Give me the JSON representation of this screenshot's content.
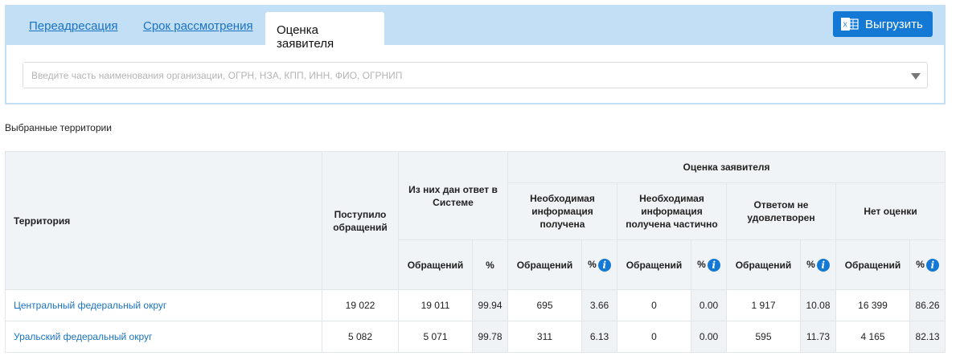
{
  "tabs": [
    {
      "label": "Переадресация",
      "active": false
    },
    {
      "label": "Срок рассмотрения",
      "active": false
    },
    {
      "label": "Оценка заявителя",
      "active": true
    }
  ],
  "export_button": {
    "label": "Выгрузить",
    "icon": "excel-icon"
  },
  "search": {
    "placeholder": "Введите часть наименования организации, ОГРН, НЗА, КПП, ИНН, ФИО, ОГРНИП",
    "value": ""
  },
  "selected_label": "Выбранные территории",
  "table": {
    "headers": {
      "territory": "Территория",
      "received": "Поступило обращений",
      "answered": "Из них дан ответ в Системе",
      "rating": "Оценка заявителя",
      "groups": [
        "Необходимая информация получена",
        "Необходимая информация получена частично",
        "Ответом не удовлетворен",
        "Нет оценки"
      ],
      "count": "Обращений",
      "pct": "%"
    },
    "rows": [
      {
        "territory": "Центральный федеральный округ",
        "received": "19 022",
        "answered": "19 011",
        "answered_pct": "99.94",
        "vals": [
          "695",
          "3.66",
          "0",
          "0.00",
          "1 917",
          "10.08",
          "16 399",
          "86.26"
        ]
      },
      {
        "territory": "Уральский федеральный округ",
        "received": "5 082",
        "answered": "5 071",
        "answered_pct": "99.78",
        "vals": [
          "311",
          "6.13",
          "0",
          "0.00",
          "595",
          "11.73",
          "4 165",
          "82.13"
        ]
      }
    ]
  },
  "colors": {
    "accent": "#1479d4",
    "tabbar": "#c3dff5",
    "link": "#1a73c2"
  }
}
